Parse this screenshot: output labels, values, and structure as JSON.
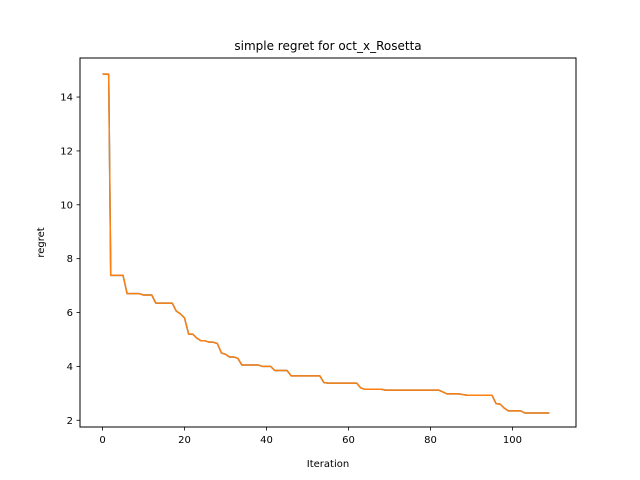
{
  "chart_data": {
    "type": "line",
    "title": "simple regret for oct_x_Rosetta",
    "xlabel": "Iteration",
    "ylabel": "regret",
    "xlim": [
      -5.5,
      115.5
    ],
    "ylim": [
      1.75,
      15.45
    ],
    "xticks": [
      0,
      20,
      40,
      60,
      80,
      100
    ],
    "yticks": [
      2,
      4,
      6,
      8,
      10,
      12,
      14
    ],
    "grid": false,
    "legend": "none",
    "series": [
      {
        "color": "#ff7f0e",
        "underlay_color": "#1f77b4",
        "points": [
          [
            0,
            14.85
          ],
          [
            1,
            14.85
          ],
          [
            1.5,
            14.85
          ],
          [
            2,
            7.38
          ],
          [
            3,
            7.38
          ],
          [
            4,
            7.38
          ],
          [
            5,
            7.38
          ],
          [
            6,
            6.7
          ],
          [
            7,
            6.7
          ],
          [
            8,
            6.7
          ],
          [
            9,
            6.7
          ],
          [
            10,
            6.65
          ],
          [
            11,
            6.65
          ],
          [
            12,
            6.65
          ],
          [
            13,
            6.35
          ],
          [
            14,
            6.35
          ],
          [
            15,
            6.35
          ],
          [
            16,
            6.35
          ],
          [
            17,
            6.35
          ],
          [
            18,
            6.05
          ],
          [
            19,
            5.95
          ],
          [
            20,
            5.8
          ],
          [
            21,
            5.2
          ],
          [
            22,
            5.2
          ],
          [
            23,
            5.05
          ],
          [
            24,
            4.95
          ],
          [
            25,
            4.95
          ],
          [
            26,
            4.9
          ],
          [
            27,
            4.9
          ],
          [
            28,
            4.85
          ],
          [
            29,
            4.5
          ],
          [
            30,
            4.45
          ],
          [
            31,
            4.35
          ],
          [
            32,
            4.35
          ],
          [
            33,
            4.3
          ],
          [
            34,
            4.05
          ],
          [
            35,
            4.05
          ],
          [
            36,
            4.05
          ],
          [
            37,
            4.05
          ],
          [
            38,
            4.05
          ],
          [
            39,
            4.0
          ],
          [
            40,
            4.0
          ],
          [
            41,
            4.0
          ],
          [
            42,
            3.85
          ],
          [
            43,
            3.85
          ],
          [
            44,
            3.85
          ],
          [
            45,
            3.85
          ],
          [
            46,
            3.65
          ],
          [
            47,
            3.65
          ],
          [
            48,
            3.65
          ],
          [
            49,
            3.65
          ],
          [
            50,
            3.65
          ],
          [
            51,
            3.65
          ],
          [
            52,
            3.65
          ],
          [
            53,
            3.65
          ],
          [
            54,
            3.4
          ],
          [
            55,
            3.38
          ],
          [
            56,
            3.38
          ],
          [
            57,
            3.38
          ],
          [
            58,
            3.38
          ],
          [
            59,
            3.38
          ],
          [
            60,
            3.38
          ],
          [
            61,
            3.38
          ],
          [
            62,
            3.38
          ],
          [
            63,
            3.2
          ],
          [
            64,
            3.15
          ],
          [
            65,
            3.15
          ],
          [
            66,
            3.15
          ],
          [
            67,
            3.15
          ],
          [
            68,
            3.15
          ],
          [
            69,
            3.12
          ],
          [
            70,
            3.12
          ],
          [
            71,
            3.12
          ],
          [
            72,
            3.12
          ],
          [
            73,
            3.12
          ],
          [
            74,
            3.12
          ],
          [
            75,
            3.12
          ],
          [
            76,
            3.12
          ],
          [
            77,
            3.12
          ],
          [
            78,
            3.12
          ],
          [
            79,
            3.12
          ],
          [
            80,
            3.12
          ],
          [
            81,
            3.12
          ],
          [
            82,
            3.12
          ],
          [
            83,
            3.05
          ],
          [
            84,
            2.98
          ],
          [
            85,
            2.98
          ],
          [
            86,
            2.98
          ],
          [
            87,
            2.98
          ],
          [
            88,
            2.95
          ],
          [
            89,
            2.93
          ],
          [
            90,
            2.93
          ],
          [
            91,
            2.93
          ],
          [
            92,
            2.93
          ],
          [
            93,
            2.93
          ],
          [
            94,
            2.93
          ],
          [
            95,
            2.93
          ],
          [
            96,
            2.62
          ],
          [
            97,
            2.6
          ],
          [
            98,
            2.45
          ],
          [
            99,
            2.35
          ],
          [
            100,
            2.35
          ],
          [
            101,
            2.35
          ],
          [
            102,
            2.35
          ],
          [
            103,
            2.27
          ],
          [
            104,
            2.27
          ],
          [
            105,
            2.27
          ],
          [
            106,
            2.27
          ],
          [
            107,
            2.27
          ],
          [
            108,
            2.27
          ],
          [
            109,
            2.27
          ]
        ]
      }
    ]
  }
}
